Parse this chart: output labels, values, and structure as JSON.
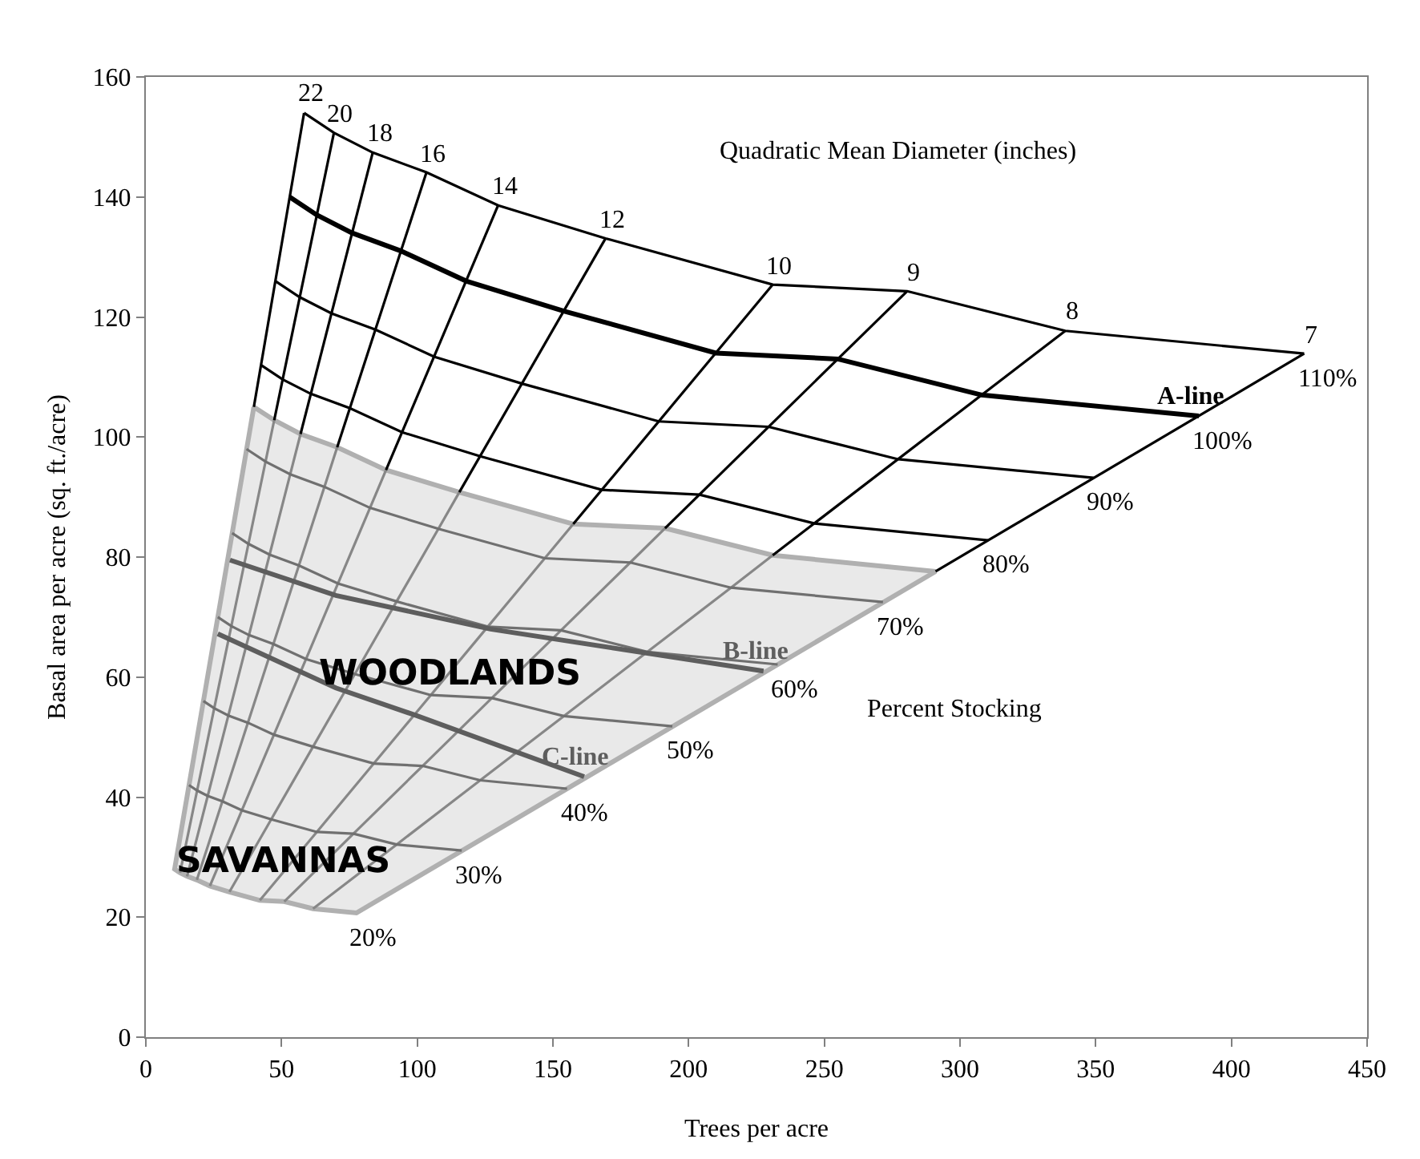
{
  "chart_data": {
    "type": "line",
    "xlabel": "Trees per acre",
    "ylabel": "Basal area per acre (sq. ft./acre)",
    "xlim": [
      0,
      450
    ],
    "xticks": [
      0,
      50,
      100,
      150,
      200,
      250,
      300,
      350,
      400,
      450
    ],
    "ylim": [
      0,
      160
    ],
    "yticks": [
      0,
      20,
      40,
      60,
      80,
      100,
      120,
      140,
      160
    ],
    "marker": "none",
    "line_style": "solid",
    "series": [
      {
        "type": "area",
        "color": "#b0b0b0",
        "x": [
          39.8,
          47.3,
          57,
          70.5,
          88.5,
          115.5,
          157.5,
          191.3,
          231,
          291,
          77.6,
          61.6,
          51,
          42,
          30.8,
          23.6,
          18.8,
          15.2,
          12.6,
          10.6,
          39.8
        ],
        "values": [
          105,
          102.8,
          100.5,
          98.3,
          94.5,
          90.8,
          85.5,
          84.8,
          80.3,
          77.6,
          20.7,
          21.4,
          22.6,
          22.8,
          24.2,
          25.2,
          26.2,
          26.8,
          27.4,
          28,
          105
        ]
      },
      {
        "color": "#878787",
        "x": [
          12.6,
          18.9,
          25.2,
          31.5,
          37.8,
          44.1,
          47.3
        ],
        "values": [
          27.4,
          41.1,
          54.8,
          68.5,
          82.2,
          95.9,
          102.8
        ]
      },
      {
        "color": "#878787",
        "x": [
          15.2,
          22.8,
          30.4,
          38,
          45.6,
          53.2,
          57
        ],
        "values": [
          26.8,
          40.2,
          53.6,
          67,
          80.4,
          93.8,
          100.5
        ]
      },
      {
        "color": "#878787",
        "x": [
          18.8,
          28.2,
          37.6,
          47,
          56.4,
          65.8,
          70.5
        ],
        "values": [
          26.2,
          39.3,
          52.4,
          65.5,
          78.6,
          91.7,
          98.3
        ]
      },
      {
        "color": "#878787",
        "x": [
          23.6,
          35.4,
          47.2,
          59,
          70.8,
          82.6,
          88.5
        ],
        "values": [
          25.2,
          37.8,
          50.4,
          63,
          75.6,
          88.2,
          94.5
        ]
      },
      {
        "color": "#878787",
        "x": [
          30.8,
          46.2,
          61.6,
          77,
          92.4,
          107.8,
          115.5
        ],
        "values": [
          24.2,
          36.3,
          48.4,
          60.5,
          72.6,
          84.7,
          90.8
        ]
      },
      {
        "color": "#878787",
        "x": [
          42,
          63,
          84,
          105,
          126,
          147,
          157.5
        ],
        "values": [
          22.8,
          34.2,
          45.6,
          57,
          68.4,
          79.8,
          85.5
        ]
      },
      {
        "color": "#878787",
        "x": [
          51,
          76.5,
          102,
          127.5,
          153,
          178.5,
          191.3
        ],
        "values": [
          22.6,
          33.9,
          45.2,
          56.5,
          67.8,
          79.1,
          84.8
        ]
      },
      {
        "color": "#878787",
        "x": [
          61.6,
          92.4,
          123.2,
          154,
          184.8,
          215.6,
          231
        ],
        "values": [
          21.4,
          32.1,
          42.8,
          53.5,
          64.2,
          74.9,
          80.3
        ]
      },
      {
        "color": "#707070",
        "x": [
          15.9,
          18.9,
          22.8,
          28.2,
          35.4,
          46.2,
          63,
          76.5,
          92.4,
          116.4
        ],
        "values": [
          42,
          41.1,
          40.2,
          39.3,
          37.8,
          36.3,
          34.2,
          33.9,
          32.1,
          31.1
        ]
      },
      {
        "color": "#707070",
        "x": [
          21.2,
          25.2,
          30.4,
          37.6,
          47.2,
          61.6,
          84,
          102,
          123.2,
          155.2
        ],
        "values": [
          56,
          54.8,
          53.6,
          52.4,
          50.4,
          48.4,
          45.6,
          45.2,
          42.8,
          41.4
        ]
      },
      {
        "color": "#707070",
        "x": [
          26.5,
          31.5,
          38,
          47,
          59,
          77,
          105,
          127.5,
          154,
          194
        ],
        "values": [
          70,
          68.5,
          67,
          65.5,
          63,
          60.5,
          57,
          56.5,
          53.5,
          51.8
        ]
      },
      {
        "color": "#707070",
        "x": [
          31.8,
          37.8,
          45.6,
          56.4,
          70.8,
          92.4,
          126,
          153,
          184.8,
          232.8
        ],
        "values": [
          84,
          82.2,
          80.4,
          78.6,
          75.6,
          72.6,
          68.4,
          67.8,
          64.2,
          62.1
        ]
      },
      {
        "color": "#707070",
        "x": [
          37.1,
          44.1,
          53.2,
          65.8,
          82.6,
          107.8,
          147,
          178.5,
          215.6,
          271.6
        ],
        "values": [
          98,
          95.9,
          93.8,
          91.7,
          88.2,
          84.7,
          79.8,
          79.1,
          74.9,
          72.5
        ]
      },
      {
        "name": "B-line",
        "color": "#5e5e5e",
        "x": [
          31,
          70,
          127,
          227.6
        ],
        "values": [
          79.5,
          73.6,
          68,
          61
        ]
      },
      {
        "name": "C-line",
        "color": "#5e5e5e",
        "x": [
          26.5,
          70,
          99.6,
          161.5
        ],
        "values": [
          67.2,
          58.2,
          53.6,
          43.4
        ]
      },
      {
        "color": "#000000",
        "x": [
          39.8,
          58.3
        ],
        "values": [
          105,
          154
        ]
      },
      {
        "color": "#000000",
        "x": [
          47.3,
          69.3
        ],
        "values": [
          102.8,
          150.7
        ]
      },
      {
        "color": "#000000",
        "x": [
          57,
          83.6
        ],
        "values": [
          100.5,
          147.4
        ]
      },
      {
        "color": "#000000",
        "x": [
          70.5,
          103.4
        ],
        "values": [
          98.3,
          144.1
        ]
      },
      {
        "color": "#000000",
        "x": [
          88.5,
          129.8
        ],
        "values": [
          94.5,
          138.6
        ]
      },
      {
        "color": "#000000",
        "x": [
          115.5,
          169.4
        ],
        "values": [
          90.8,
          133.1
        ]
      },
      {
        "color": "#000000",
        "x": [
          157.5,
          231
        ],
        "values": [
          85.5,
          125.4
        ]
      },
      {
        "color": "#000000",
        "x": [
          191.3,
          280.5
        ],
        "values": [
          84.8,
          124.3
        ]
      },
      {
        "color": "#000000",
        "x": [
          231,
          338.8
        ],
        "values": [
          80.3,
          117.7
        ]
      },
      {
        "color": "#000000",
        "x": [
          291,
          426.8
        ],
        "values": [
          77.6,
          113.9
        ]
      },
      {
        "color": "#000000",
        "x": [
          42.4,
          50.4,
          60.8,
          75.2,
          94.4,
          123.2,
          168,
          204,
          246.4,
          310.4
        ],
        "values": [
          112,
          109.6,
          107.2,
          104.8,
          100.8,
          96.8,
          91.2,
          90.4,
          85.6,
          82.8
        ]
      },
      {
        "color": "#000000",
        "x": [
          47.7,
          56.7,
          68.4,
          84.6,
          106.2,
          138.6,
          189,
          229.5,
          277.2,
          349.2
        ],
        "values": [
          126,
          123.3,
          120.6,
          117.9,
          113.4,
          108.9,
          102.6,
          101.7,
          96.3,
          93.2
        ]
      },
      {
        "color": "#000000",
        "x": [
          58.3,
          69.3,
          83.6,
          103.4,
          129.8,
          169.4,
          231,
          280.5,
          338.8,
          426.8
        ],
        "values": [
          154,
          150.7,
          147.4,
          144.1,
          138.6,
          133.1,
          125.4,
          124.3,
          117.7,
          113.9
        ]
      },
      {
        "name": "A-line",
        "color": "#000000",
        "x": [
          53,
          63,
          76,
          94,
          118,
          154,
          210,
          255,
          308,
          388
        ],
        "values": [
          140,
          137,
          134,
          131,
          126,
          121,
          114,
          113,
          107,
          103.5
        ]
      }
    ],
    "annotations": [
      "Quadratic Mean Diameter (inches)",
      "Percent Stocking",
      {
        "text": "WOODLANDS",
        "x": 112,
        "y": 60.6
      },
      {
        "text": "SAVANNAS",
        "x": 50.8,
        "y": 29.3
      },
      {
        "text": "22",
        "x": 58.3,
        "y": 154
      },
      {
        "text": "20",
        "x": 69.3,
        "y": 150.7
      },
      {
        "text": "18",
        "x": 83.6,
        "y": 147.4
      },
      {
        "text": "16",
        "x": 103.4,
        "y": 144.1
      },
      {
        "text": "14",
        "x": 129.8,
        "y": 138.6
      },
      {
        "text": "12",
        "x": 169.4,
        "y": 133.1
      },
      {
        "text": "10",
        "x": 231,
        "y": 125.4
      },
      {
        "text": "9",
        "x": 280.5,
        "y": 124.3
      },
      {
        "text": "8",
        "x": 338.8,
        "y": 117.7
      },
      {
        "text": "7",
        "x": 426.8,
        "y": 113.9
      },
      {
        "text": "110%",
        "x": 426.8,
        "y": 113.9
      },
      {
        "text": "100%",
        "x": 388,
        "y": 103.5
      },
      {
        "text": "90%",
        "x": 349.2,
        "y": 93.2
      },
      {
        "text": "80%",
        "x": 310.4,
        "y": 82.8
      },
      {
        "text": "70%",
        "x": 271.6,
        "y": 72.5
      },
      {
        "text": "60%",
        "x": 232.8,
        "y": 62.1
      },
      {
        "text": "50%",
        "x": 194,
        "y": 51.8
      },
      {
        "text": "40%",
        "x": 155.2,
        "y": 41.4
      },
      {
        "text": "30%",
        "x": 116.4,
        "y": 31.1
      },
      {
        "text": "20%",
        "x": 77.6,
        "y": 20.7
      }
    ]
  }
}
